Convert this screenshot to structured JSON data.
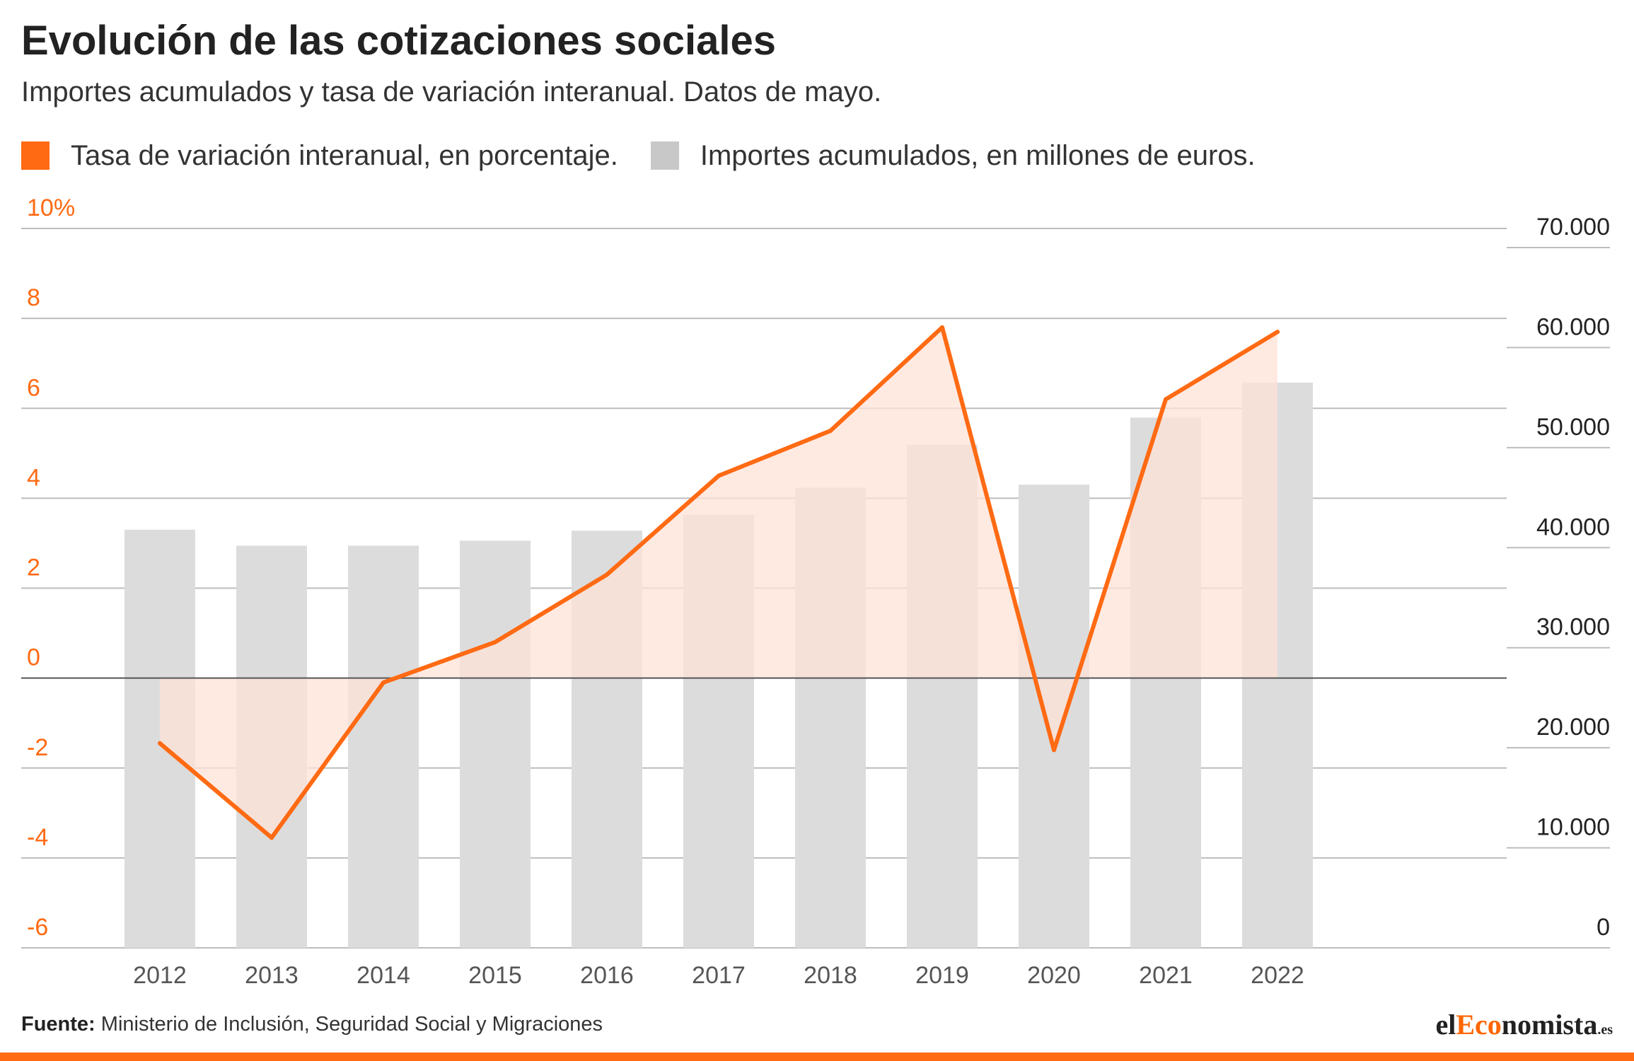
{
  "header": {
    "title": "Evolución de las cotizaciones sociales",
    "subtitle": "Importes acumulados y tasa de variación interanual. Datos de mayo."
  },
  "legend": [
    {
      "label": "Tasa de variación interanual, en porcentaje.",
      "color": "#ff6a13"
    },
    {
      "label": "Importes acumulados, en millones de euros.",
      "color": "#c8c8c8"
    }
  ],
  "footer": {
    "source_label": "Fuente:",
    "source_text": "Ministerio de Inclusión, Seguridad Social y Migraciones",
    "logo_prefix": "el",
    "logo_accent": "Eco",
    "logo_rest": "nomista",
    "logo_tld": ".es"
  },
  "colors": {
    "line": "#ff6a13",
    "area_fill": "#ffe3d8",
    "bar": "#dcdcdc",
    "grid": "#bdbdbd",
    "zero_line": "#555555",
    "left_axis_text": "#ff6a13",
    "right_axis_text": "#222222",
    "bottom_bar": "#ff6a13"
  },
  "chart_data": {
    "type": "bar+line",
    "categories": [
      "2012",
      "2013",
      "2014",
      "2015",
      "2016",
      "2017",
      "2018",
      "2019",
      "2020",
      "2021",
      "2022"
    ],
    "series": [
      {
        "type": "bar",
        "axis": "right",
        "values": [
          41800,
          40200,
          40200,
          40700,
          41700,
          43300,
          46000,
          50300,
          46300,
          53000,
          56500
        ]
      },
      {
        "type": "line-area",
        "axis": "left",
        "values": [
          -1.45,
          -3.55,
          -0.1,
          0.8,
          2.3,
          4.5,
          5.5,
          7.8,
          -1.6,
          6.2,
          7.7
        ]
      }
    ],
    "left_axis": {
      "range": [
        -6,
        10
      ],
      "ticks": [
        -6,
        -4,
        -2,
        0,
        2,
        4,
        6,
        8,
        10
      ],
      "tick_labels": [
        "-6",
        "-4",
        "-2",
        "0",
        "2",
        "4",
        "6",
        "8",
        "10%"
      ]
    },
    "right_axis": {
      "range": [
        0,
        70000
      ],
      "ticks": [
        0,
        10000,
        20000,
        30000,
        40000,
        50000,
        60000,
        70000
      ],
      "tick_labels": [
        "0",
        "10.000",
        "20.000",
        "30.000",
        "40.000",
        "50.000",
        "60.000",
        "70.000"
      ]
    },
    "grid": true
  }
}
